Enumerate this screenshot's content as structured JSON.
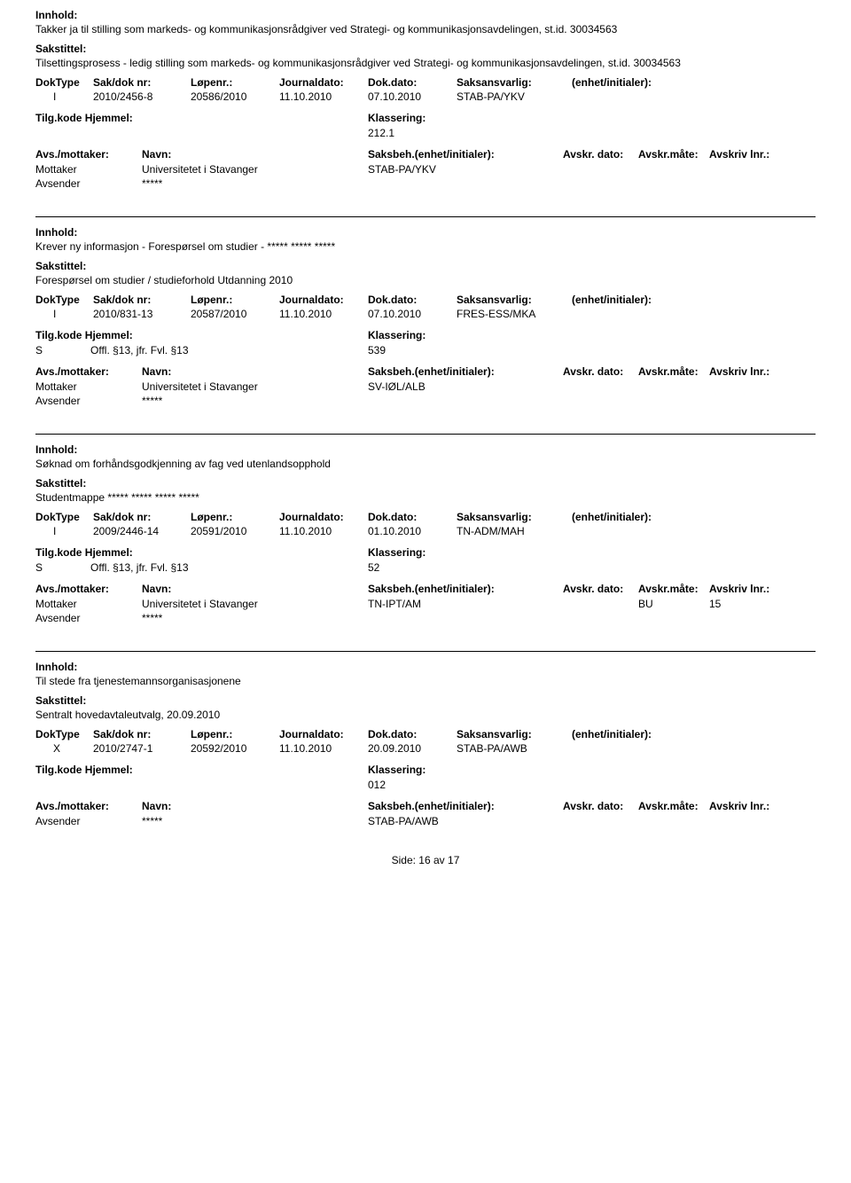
{
  "labels": {
    "innhold": "Innhold:",
    "sakstittel": "Sakstittel:",
    "doktype": "DokType",
    "saknr": "Sak/dok nr:",
    "lopenr": "Løpenr.:",
    "journaldato": "Journaldato:",
    "dokdato": "Dok.dato:",
    "saksansvarlig": "Saksansvarlig:",
    "enhet": "(enhet/initialer):",
    "tilgkode": "Tilg.kode",
    "hjemmel": "Hjemmel:",
    "klassering": "Klassering:",
    "avsmottaker": "Avs./mottaker:",
    "navn": "Navn:",
    "saksbeh": "Saksbeh.(enhet/initialer):",
    "avskrdato": "Avskr. dato:",
    "avskrmate": "Avskr.måte:",
    "avskrlnr": "Avskriv lnr.:",
    "mottaker": "Mottaker",
    "avsender": "Avsender"
  },
  "entries": [
    {
      "innhold": "Takker ja til stilling som markeds- og kommunikasjonsrådgiver ved Strategi- og kommunikasjonsavdelingen, st.id. 30034563",
      "sakstittel": "Tilsettingsprosess - ledig stilling som markeds- og kommunikasjonsrådgiver ved Strategi- og kommunikasjonsavdelingen, st.id. 30034563",
      "doktype": "I",
      "saknr": "2010/2456-8",
      "lopenr": "20586/2010",
      "journaldato": "11.10.2010",
      "dokdato": "07.10.2010",
      "saksansvarlig": "STAB-PA/YKV",
      "tilgkode": "",
      "hjemmel": "",
      "klassering": "212.1",
      "parties": [
        {
          "role": "Mottaker",
          "name": "Universitetet i Stavanger",
          "saksbeh": "STAB-PA/YKV",
          "mate": "",
          "lnr": ""
        },
        {
          "role": "Avsender",
          "name": "*****",
          "saksbeh": "",
          "mate": "",
          "lnr": ""
        }
      ]
    },
    {
      "innhold": "Krever ny informasjon - Forespørsel om studier - ***** ***** *****",
      "sakstittel": "Forespørsel om studier / studieforhold Utdanning 2010",
      "doktype": "I",
      "saknr": "2010/831-13",
      "lopenr": "20587/2010",
      "journaldato": "11.10.2010",
      "dokdato": "07.10.2010",
      "saksansvarlig": "FRES-ESS/MKA",
      "tilgkode": "S",
      "hjemmel": "Offl. §13, jfr. Fvl. §13",
      "klassering": "539",
      "parties": [
        {
          "role": "Mottaker",
          "name": "Universitetet i Stavanger",
          "saksbeh": "SV-IØL/ALB",
          "mate": "",
          "lnr": ""
        },
        {
          "role": "Avsender",
          "name": "*****",
          "saksbeh": "",
          "mate": "",
          "lnr": ""
        }
      ]
    },
    {
      "innhold": "Søknad om forhåndsgodkjenning av fag ved utenlandsopphold",
      "sakstittel": "Studentmappe ***** ***** ***** *****",
      "doktype": "I",
      "saknr": "2009/2446-14",
      "lopenr": "20591/2010",
      "journaldato": "11.10.2010",
      "dokdato": "01.10.2010",
      "saksansvarlig": "TN-ADM/MAH",
      "tilgkode": "S",
      "hjemmel": "Offl. §13, jfr. Fvl. §13",
      "klassering": "52",
      "parties": [
        {
          "role": "Mottaker",
          "name": "Universitetet i Stavanger",
          "saksbeh": "TN-IPT/AM",
          "mate": "BU",
          "lnr": "15"
        },
        {
          "role": "Avsender",
          "name": "*****",
          "saksbeh": "",
          "mate": "",
          "lnr": ""
        }
      ]
    },
    {
      "innhold": "Til stede fra tjenestemannsorganisasjonene",
      "sakstittel": "Sentralt hovedavtaleutvalg, 20.09.2010",
      "doktype": "X",
      "saknr": "2010/2747-1",
      "lopenr": "20592/2010",
      "journaldato": "11.10.2010",
      "dokdato": "20.09.2010",
      "saksansvarlig": "STAB-PA/AWB",
      "tilgkode": "",
      "hjemmel": "",
      "klassering": "012",
      "parties": [
        {
          "role": "Avsender",
          "name": "*****",
          "saksbeh": "STAB-PA/AWB",
          "mate": "",
          "lnr": ""
        }
      ]
    }
  ],
  "footer": {
    "side": "Side:",
    "page": "16",
    "av": "av",
    "total": "17"
  }
}
